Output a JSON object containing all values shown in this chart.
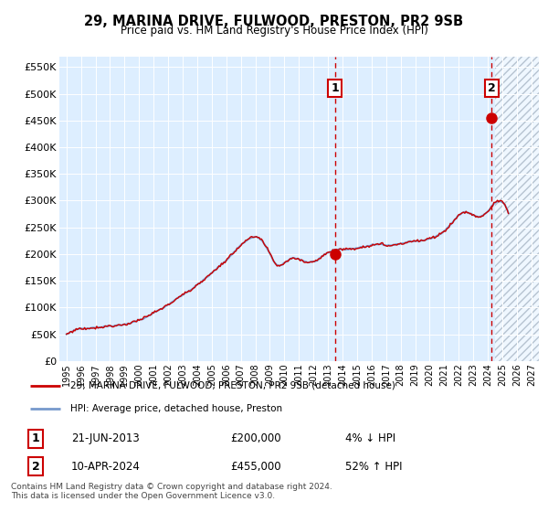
{
  "title": "29, MARINA DRIVE, FULWOOD, PRESTON, PR2 9SB",
  "subtitle": "Price paid vs. HM Land Registry's House Price Index (HPI)",
  "legend_line1": "29, MARINA DRIVE, FULWOOD, PRESTON, PR2 9SB (detached house)",
  "legend_line2": "HPI: Average price, detached house, Preston",
  "table_row1": [
    "1",
    "21-JUN-2013",
    "£200,000",
    "4% ↓ HPI"
  ],
  "table_row2": [
    "2",
    "10-APR-2024",
    "£455,000",
    "52% ↑ HPI"
  ],
  "footer": "Contains HM Land Registry data © Crown copyright and database right 2024.\nThis data is licensed under the Open Government Licence v3.0.",
  "hpi_color": "#7799cc",
  "price_color": "#cc0000",
  "bg_color": "#ddeeff",
  "marker1_date": 2013.47,
  "marker1_price": 200000,
  "marker2_date": 2024.27,
  "marker2_price": 455000,
  "ylim": [
    0,
    570000
  ],
  "xlim": [
    1994.5,
    2027.5
  ],
  "yticks": [
    0,
    50000,
    100000,
    150000,
    200000,
    250000,
    300000,
    350000,
    400000,
    450000,
    500000,
    550000
  ],
  "xticks": [
    1995,
    1996,
    1997,
    1998,
    1999,
    2000,
    2001,
    2002,
    2003,
    2004,
    2005,
    2006,
    2007,
    2008,
    2009,
    2010,
    2011,
    2012,
    2013,
    2014,
    2015,
    2016,
    2017,
    2018,
    2019,
    2020,
    2021,
    2022,
    2023,
    2024,
    2025,
    2026,
    2027
  ],
  "hatch_start": 2024.5,
  "future_color": "#ccddef"
}
